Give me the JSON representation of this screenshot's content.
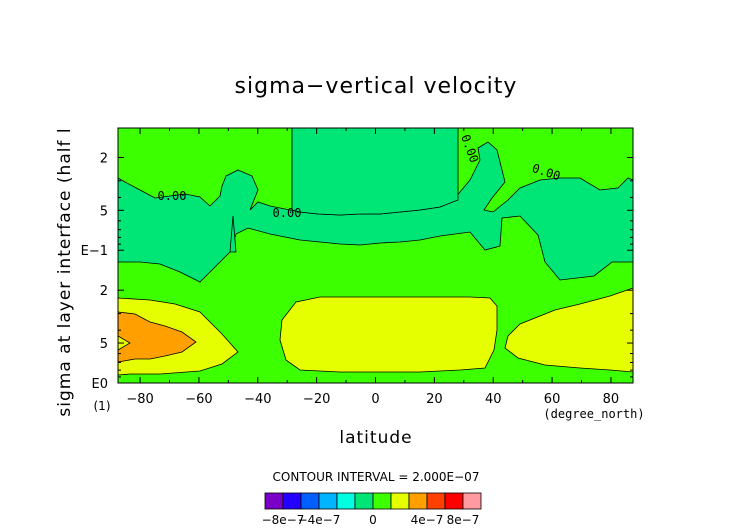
{
  "chart_data": {
    "type": "contour",
    "title": "sigma−vertical velocity",
    "xlabel": "latitude",
    "ylabel": "sigma at layer interface (half l",
    "x_unit": "(degree_north)",
    "y_unit_marker": "(1)",
    "x_ticks": [
      "−80",
      "−60",
      "−40",
      "−20",
      "0",
      "20",
      "40",
      "60",
      "80"
    ],
    "x_tick_values": [
      -80,
      -60,
      -40,
      -20,
      0,
      20,
      40,
      60,
      80
    ],
    "xlim": [
      -87.5,
      87.5
    ],
    "y_scale": "log",
    "y_ticks": [
      "2",
      "5",
      "E−1",
      "2",
      "5",
      "E0"
    ],
    "y_tick_values": [
      0.02,
      0.05,
      0.1,
      0.2,
      0.5,
      1.0
    ],
    "ylim": [
      1.0,
      0.012
    ],
    "contour_interval_text": "CONTOUR INTERVAL = 2.000E−07",
    "contour_labels": [
      "0.00",
      "0.00",
      "0.00",
      "0.00"
    ],
    "colorbar": {
      "levels_labels": [
        "−8e−7",
        "−4e−7",
        "0",
        "4e−7",
        "8e−7"
      ],
      "colors": [
        "#7a00c8",
        "#2400ff",
        "#0060ff",
        "#00b4ff",
        "#00ffe0",
        "#00e676",
        "#3cff00",
        "#e6ff00",
        "#ffa000",
        "#ff4000",
        "#ff0000",
        "#ff9aa0"
      ]
    },
    "region_colors": {
      "below_0": "#00e676",
      "0_to_2e-7": "#3cff00",
      "2e-7_to_4e-7": "#e6ff00",
      "4e-7_to_6e-7": "#ffa000"
    }
  }
}
